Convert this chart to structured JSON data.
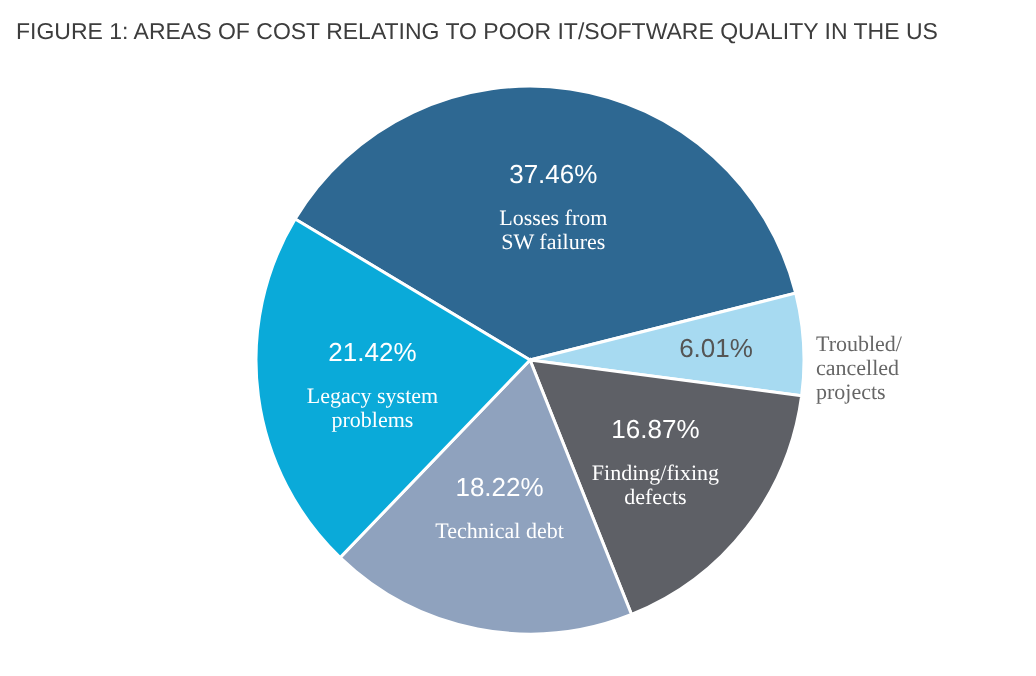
{
  "chart_data": {
    "type": "pie",
    "title": "FIGURE 1:  AREAS OF COST RELATING TO POOR IT/SOFTWARE QUALITY IN THE US",
    "categories": [
      "Losses from SW failures",
      "Troubled/cancelled projects",
      "Finding/fixing defects",
      "Technical debt",
      "Legacy system problems"
    ],
    "values": [
      37.46,
      6.01,
      16.87,
      18.22,
      21.42
    ],
    "value_labels": [
      "37.46%",
      "6.01%",
      "16.87%",
      "18.22%",
      "21.42%"
    ],
    "colors": [
      "#2e6892",
      "#a7daf1",
      "#5e6066",
      "#8fa2be",
      "#0aaad9"
    ]
  }
}
